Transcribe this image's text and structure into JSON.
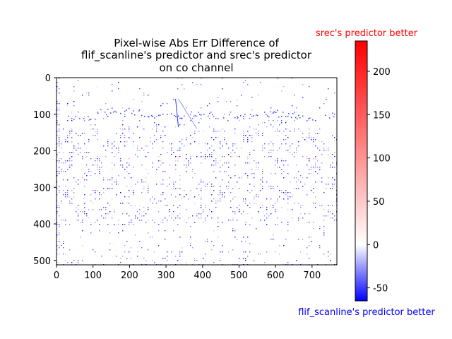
{
  "chart_data": {
    "type": "heatmap",
    "title_lines": [
      "Pixel-wise Abs Err Difference of",
      "flif_scanline's predictor and srec's predictor",
      "on co channel"
    ],
    "image_size": {
      "width": 768,
      "height": 512
    },
    "x_ticks": [
      0,
      100,
      200,
      300,
      400,
      500,
      600,
      700
    ],
    "y_ticks": [
      0,
      100,
      200,
      300,
      400,
      500
    ],
    "xlim": [
      0,
      768
    ],
    "ylim": [
      512,
      0
    ],
    "colorbar": {
      "range": [
        -65,
        235
      ],
      "ticks": [
        -50,
        0,
        50,
        100,
        150,
        200
      ],
      "top_label": "srec's predictor better",
      "bottom_label": "flif_scanline's predictor better",
      "top_color": "#ff0000",
      "bottom_color": "#0000ff",
      "colormap": "bwr"
    },
    "notes_colors": {
      "positive": "#ff0000",
      "negative": "#0000ff",
      "zero": "#ffffff"
    }
  }
}
